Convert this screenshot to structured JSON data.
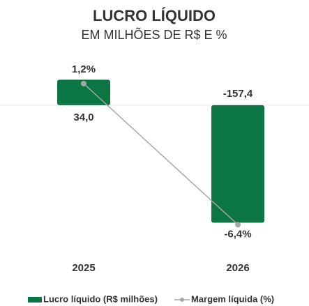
{
  "chart_data": {
    "type": "bar_line",
    "title": "LUCRO LÍQUIDO",
    "subtitle": "EM MILHÕES DE R$ E %",
    "categories": [
      "2025",
      "2026"
    ],
    "series": [
      {
        "name": "Lucro líquido (R$ milhões)",
        "type": "bar",
        "color": "#0b7544",
        "values": [
          34.0,
          -157.4
        ],
        "value_labels": [
          "34,0",
          "-157,4"
        ]
      },
      {
        "name": "Margem líquida (%)",
        "type": "line",
        "axis": "y2",
        "color": "#a6a6a6",
        "values": [
          1.2,
          -6.4
        ],
        "value_labels": [
          "1,2%",
          "-6,4%"
        ]
      }
    ],
    "ylim": [
      -170,
      40
    ],
    "y2lim": [
      -6.8,
      1.65
    ],
    "legend": "bottom"
  }
}
